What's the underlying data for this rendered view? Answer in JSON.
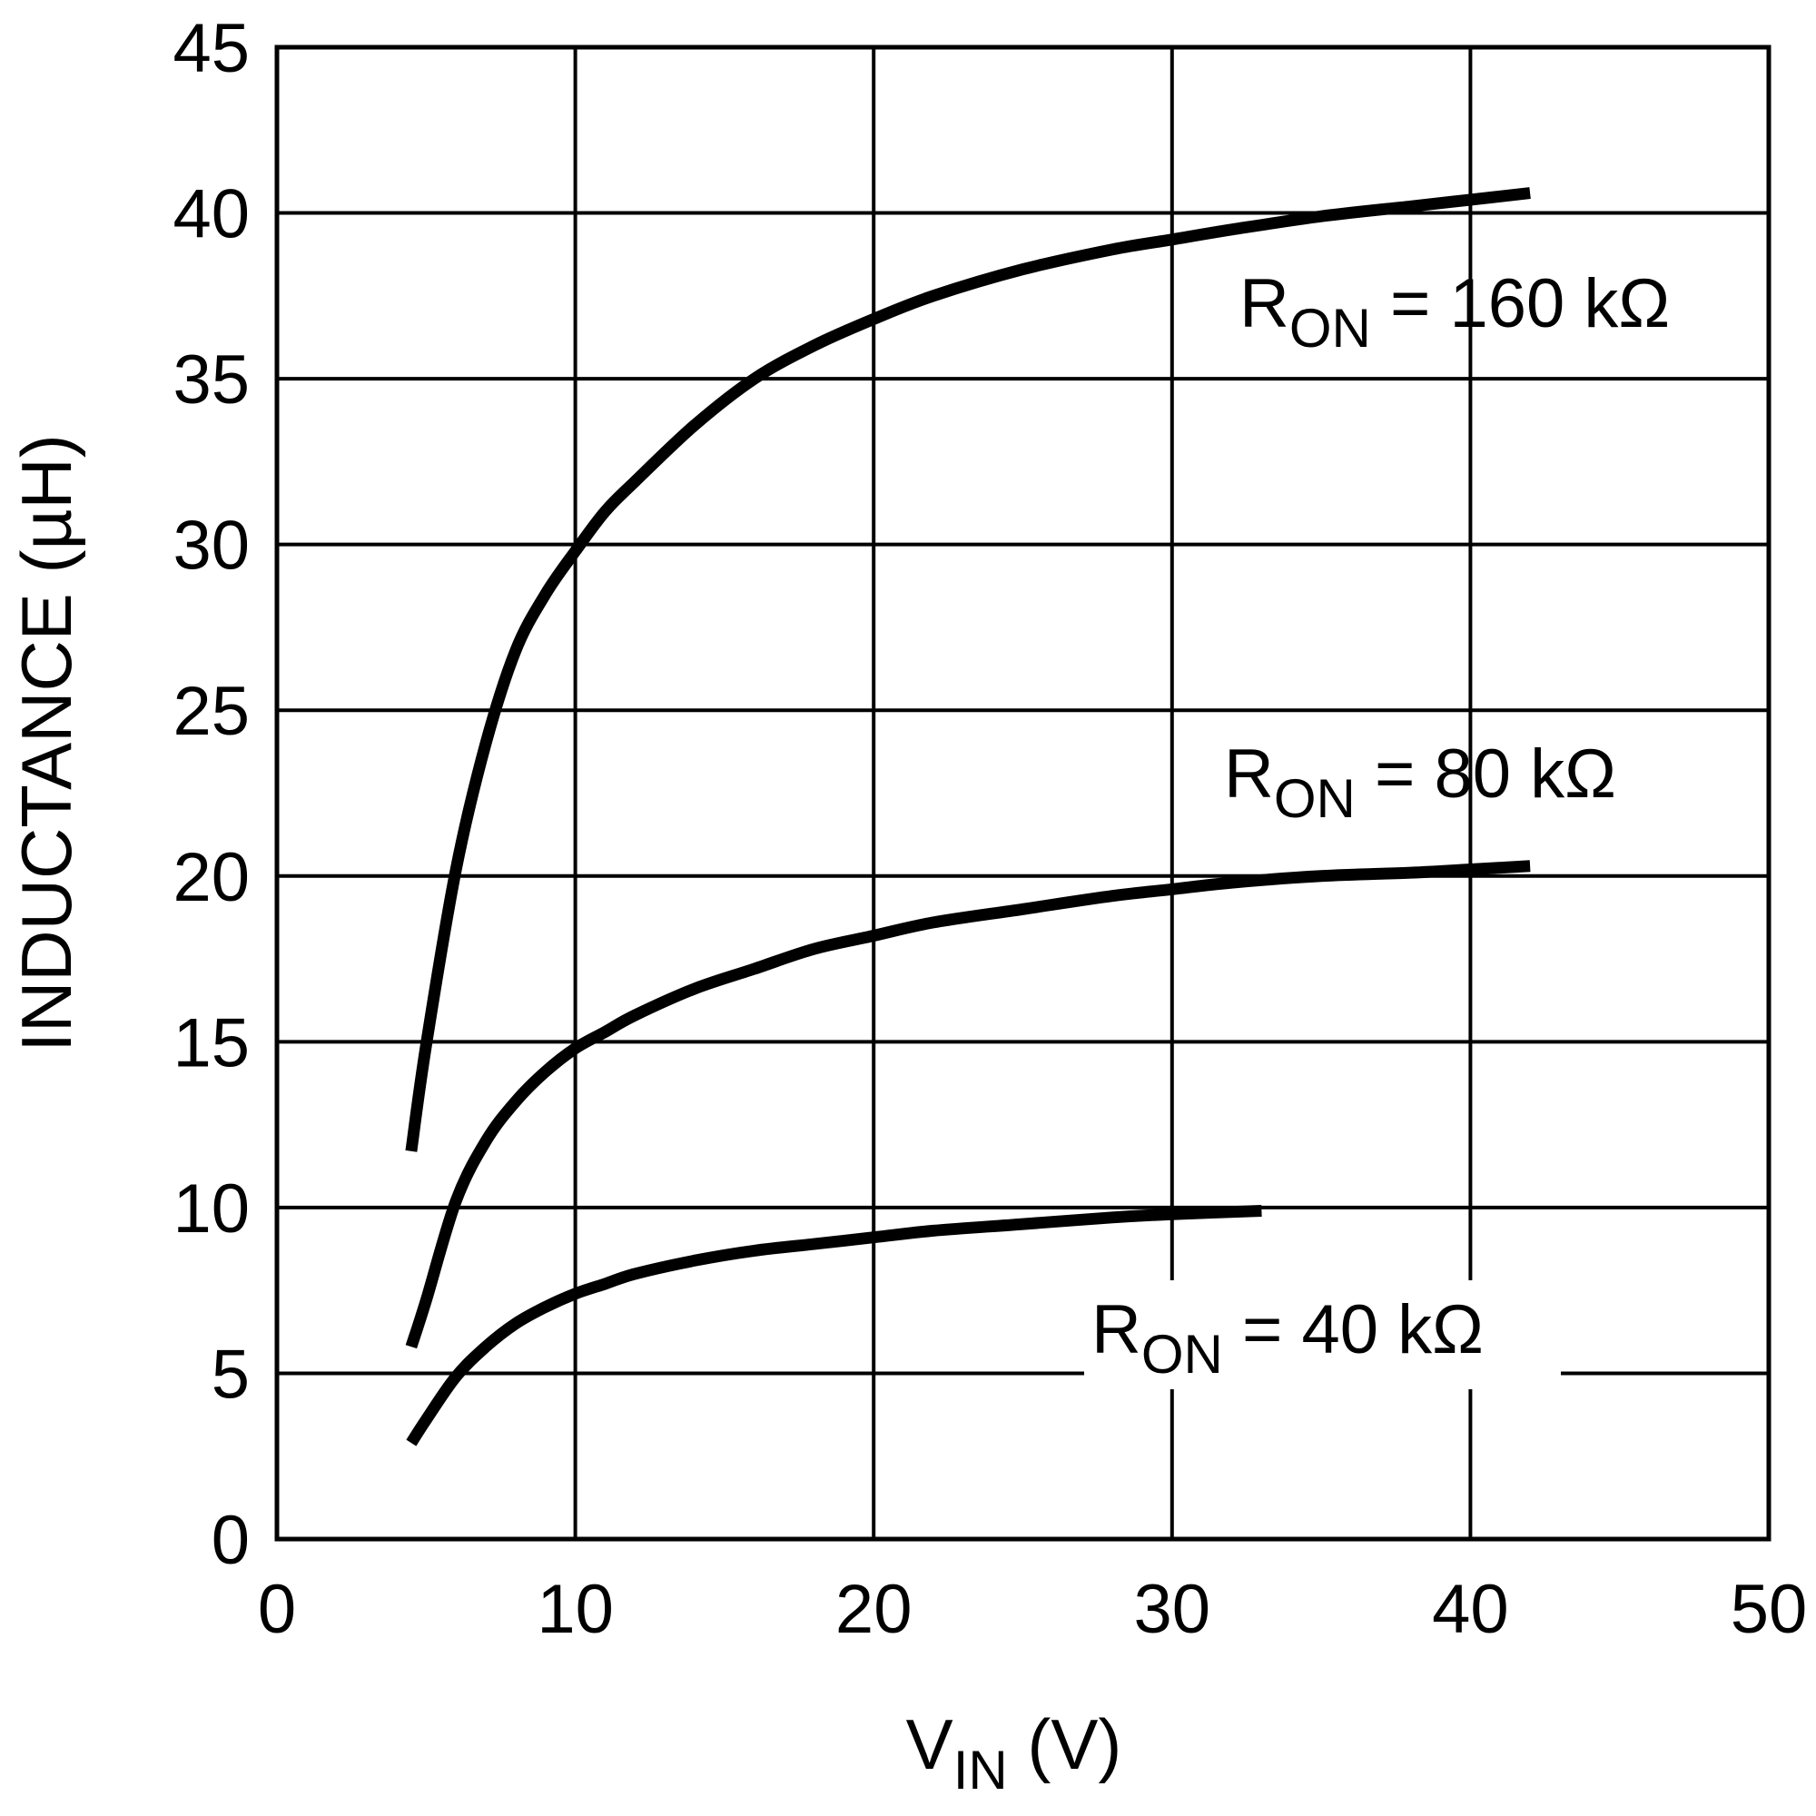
{
  "chart_data": {
    "type": "line",
    "title": "",
    "xlabel": {
      "main": "V",
      "sub": "IN",
      "unit": "(V)"
    },
    "ylabel": "INDUCTANCE (µH)",
    "xlim": [
      0,
      50
    ],
    "ylim": [
      0,
      45
    ],
    "xticks": [
      0,
      10,
      20,
      30,
      40,
      50
    ],
    "yticks": [
      0,
      5,
      10,
      15,
      20,
      25,
      30,
      35,
      40,
      45
    ],
    "xtick_labels": [
      "0",
      "10",
      "20",
      "30",
      "40",
      "50"
    ],
    "ytick_labels": [
      "0",
      "5",
      "10",
      "15",
      "20",
      "25",
      "30",
      "35",
      "40",
      "45"
    ],
    "grid": true,
    "legend": "none",
    "series": [
      {
        "name": "RON = 160 kΩ",
        "label": {
          "main": "R",
          "sub": "ON",
          "rest": " = 160 kΩ"
        },
        "x": [
          4.5,
          5,
          6,
          7,
          8,
          9,
          10,
          11,
          12,
          14,
          16,
          18,
          20,
          22,
          25,
          28,
          30,
          32,
          35,
          38,
          40,
          42
        ],
        "y": [
          11.7,
          14.9,
          20.2,
          24.0,
          26.8,
          28.5,
          29.8,
          31.0,
          31.9,
          33.6,
          35.0,
          36.0,
          36.8,
          37.5,
          38.3,
          38.9,
          39.2,
          39.5,
          39.9,
          40.2,
          40.4,
          40.6
        ]
      },
      {
        "name": "RON = 80 kΩ",
        "label": {
          "main": "R",
          "sub": "ON",
          "rest": " = 80 kΩ"
        },
        "x": [
          4.5,
          5,
          6,
          7,
          8,
          9,
          10,
          11,
          12,
          14,
          16,
          18,
          20,
          22,
          25,
          28,
          30,
          32,
          35,
          38,
          40,
          42
        ],
        "y": [
          5.8,
          7.2,
          10.2,
          12.0,
          13.2,
          14.1,
          14.8,
          15.3,
          15.8,
          16.6,
          17.2,
          17.8,
          18.2,
          18.6,
          19.0,
          19.4,
          19.6,
          19.8,
          20.0,
          20.1,
          20.2,
          20.3
        ]
      },
      {
        "name": "RON = 40 kΩ",
        "label": {
          "main": "R",
          "sub": "ON",
          "rest": " = 40 kΩ"
        },
        "x": [
          4.5,
          5,
          6,
          7,
          8,
          9,
          10,
          11,
          12,
          14,
          16,
          18,
          20,
          22,
          25,
          28,
          30,
          33
        ],
        "y": [
          2.9,
          3.6,
          4.9,
          5.8,
          6.5,
          7.0,
          7.4,
          7.7,
          8.0,
          8.4,
          8.7,
          8.9,
          9.1,
          9.3,
          9.5,
          9.7,
          9.8,
          9.9
        ]
      }
    ]
  }
}
